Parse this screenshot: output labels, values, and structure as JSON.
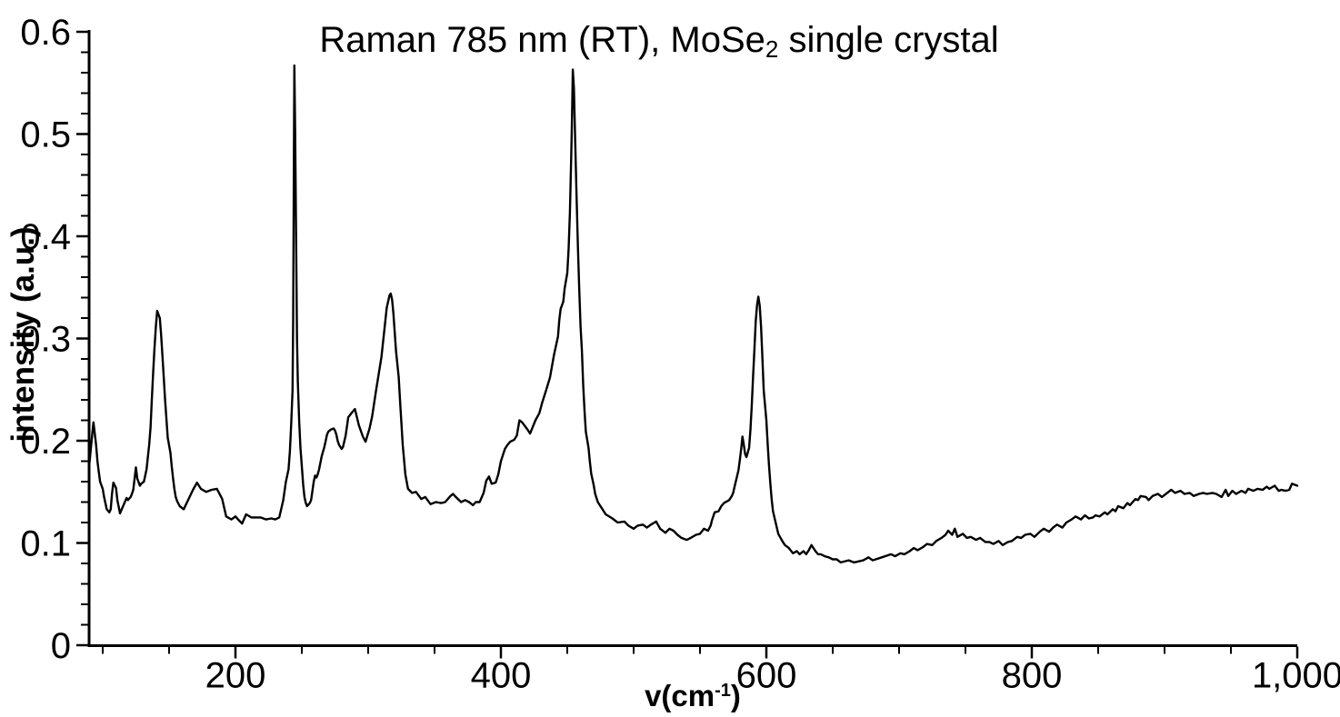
{
  "title": {
    "prefix": "Raman 785 nm (RT), MoSe",
    "subscript": "2",
    "suffix": " single crystal"
  },
  "x_axis": {
    "title_prefix": "v(cm",
    "title_superscript": "-1",
    "title_suffix": ")",
    "min": 89.7,
    "max": 1000,
    "major_ticks": [
      {
        "value": 200,
        "label": "200"
      },
      {
        "value": 400,
        "label": "400"
      },
      {
        "value": 600,
        "label": "600"
      },
      {
        "value": 800,
        "label": "800"
      },
      {
        "value": 1000,
        "label": "1,000"
      }
    ],
    "minor_tick_start": 100,
    "minor_tick_step": 50
  },
  "y_axis": {
    "title": "intensity (a.u.)",
    "min": 0,
    "max": 0.6,
    "major_ticks": [
      {
        "value": 0,
        "label": "0"
      },
      {
        "value": 0.1,
        "label": "0.1"
      },
      {
        "value": 0.2,
        "label": "0.2"
      },
      {
        "value": 0.3,
        "label": "0.3"
      },
      {
        "value": 0.4,
        "label": "0.4"
      },
      {
        "value": 0.5,
        "label": "0.5"
      },
      {
        "value": 0.6,
        "label": "0.6"
      }
    ],
    "minor_tick_step": 0.02
  },
  "chart_data": {
    "type": "line",
    "title": "Raman 785 nm (RT), MoSe2 single crystal",
    "xlabel": "v(cm-1)",
    "ylabel": "intensity (a.u.)",
    "xlim": [
      89.7,
      1000
    ],
    "ylim": [
      0,
      0.6
    ],
    "grid": false,
    "legend_position": "none",
    "line_color": "#000000",
    "background_color": "#ffffff",
    "peaks": [
      {
        "v": 93,
        "intensity": 0.218
      },
      {
        "v": 141,
        "intensity": 0.327
      },
      {
        "v": 244,
        "intensity": 0.567
      },
      {
        "v": 273,
        "intensity": 0.212
      },
      {
        "v": 290,
        "intensity": 0.231
      },
      {
        "v": 317,
        "intensity": 0.344
      },
      {
        "v": 414,
        "intensity": 0.22
      },
      {
        "v": 454,
        "intensity": 0.563
      },
      {
        "v": 582,
        "intensity": 0.204
      },
      {
        "v": 594,
        "intensity": 0.341
      }
    ],
    "points": [
      [
        89.5,
        0.172
      ],
      [
        90,
        0.178
      ],
      [
        92,
        0.205
      ],
      [
        93,
        0.218
      ],
      [
        95,
        0.196
      ],
      [
        96,
        0.18
      ],
      [
        97,
        0.17
      ],
      [
        98,
        0.16
      ],
      [
        100,
        0.153
      ],
      [
        101,
        0.145
      ],
      [
        103,
        0.133
      ],
      [
        105,
        0.13
      ],
      [
        106,
        0.133
      ],
      [
        107,
        0.148
      ],
      [
        108,
        0.159
      ],
      [
        110,
        0.154
      ],
      [
        111,
        0.142
      ],
      [
        113,
        0.129
      ],
      [
        115,
        0.135
      ],
      [
        117,
        0.141
      ],
      [
        118,
        0.144
      ],
      [
        119,
        0.142
      ],
      [
        121,
        0.145
      ],
      [
        122,
        0.148
      ],
      [
        123,
        0.152
      ],
      [
        125,
        0.174
      ],
      [
        126,
        0.163
      ],
      [
        128,
        0.156
      ],
      [
        129,
        0.158
      ],
      [
        131,
        0.16
      ],
      [
        133,
        0.172
      ],
      [
        135,
        0.196
      ],
      [
        136,
        0.213
      ],
      [
        137,
        0.24
      ],
      [
        138,
        0.267
      ],
      [
        139,
        0.29
      ],
      [
        140,
        0.311
      ],
      [
        141,
        0.327
      ],
      [
        143,
        0.32
      ],
      [
        144,
        0.304
      ],
      [
        145,
        0.283
      ],
      [
        146,
        0.261
      ],
      [
        147,
        0.24
      ],
      [
        148,
        0.221
      ],
      [
        149,
        0.203
      ],
      [
        151,
        0.188
      ],
      [
        152,
        0.175
      ],
      [
        153,
        0.163
      ],
      [
        154,
        0.153
      ],
      [
        155,
        0.145
      ],
      [
        156,
        0.141
      ],
      [
        158,
        0.136
      ],
      [
        161,
        0.133
      ],
      [
        164,
        0.141
      ],
      [
        168,
        0.152
      ],
      [
        171,
        0.159
      ],
      [
        174,
        0.153
      ],
      [
        178,
        0.15
      ],
      [
        182,
        0.152
      ],
      [
        186,
        0.153
      ],
      [
        190,
        0.143
      ],
      [
        193,
        0.126
      ],
      [
        197,
        0.123
      ],
      [
        200,
        0.126
      ],
      [
        202,
        0.123
      ],
      [
        205,
        0.119
      ],
      [
        208,
        0.128
      ],
      [
        212,
        0.125
      ],
      [
        215,
        0.125
      ],
      [
        219,
        0.125
      ],
      [
        223,
        0.123
      ],
      [
        227,
        0.124
      ],
      [
        230,
        0.123
      ],
      [
        233,
        0.125
      ],
      [
        236,
        0.142
      ],
      [
        238,
        0.16
      ],
      [
        240,
        0.172
      ],
      [
        241,
        0.19
      ],
      [
        242,
        0.216
      ],
      [
        243,
        0.249
      ],
      [
        243.5,
        0.32
      ],
      [
        244,
        0.46
      ],
      [
        244.4,
        0.567
      ],
      [
        245,
        0.5
      ],
      [
        245.7,
        0.4
      ],
      [
        246.4,
        0.3
      ],
      [
        247,
        0.258
      ],
      [
        247.5,
        0.24
      ],
      [
        248,
        0.219
      ],
      [
        249,
        0.193
      ],
      [
        250,
        0.175
      ],
      [
        251,
        0.157
      ],
      [
        252,
        0.145
      ],
      [
        253,
        0.139
      ],
      [
        254,
        0.136
      ],
      [
        256,
        0.139
      ],
      [
        257,
        0.142
      ],
      [
        258,
        0.151
      ],
      [
        259,
        0.16
      ],
      [
        260,
        0.166
      ],
      [
        261,
        0.164
      ],
      [
        262,
        0.167
      ],
      [
        263,
        0.172
      ],
      [
        265,
        0.185
      ],
      [
        267,
        0.194
      ],
      [
        268,
        0.2
      ],
      [
        269,
        0.206
      ],
      [
        270,
        0.209
      ],
      [
        272,
        0.211
      ],
      [
        274,
        0.212
      ],
      [
        275,
        0.21
      ],
      [
        276,
        0.206
      ],
      [
        277,
        0.2
      ],
      [
        278,
        0.196
      ],
      [
        280,
        0.192
      ],
      [
        281,
        0.194
      ],
      [
        283,
        0.205
      ],
      [
        285,
        0.223
      ],
      [
        288,
        0.228
      ],
      [
        290,
        0.231
      ],
      [
        293,
        0.215
      ],
      [
        296,
        0.204
      ],
      [
        298,
        0.199
      ],
      [
        301,
        0.212
      ],
      [
        303,
        0.224
      ],
      [
        306,
        0.25
      ],
      [
        308,
        0.266
      ],
      [
        310,
        0.282
      ],
      [
        312,
        0.306
      ],
      [
        314,
        0.33
      ],
      [
        316,
        0.342
      ],
      [
        317,
        0.344
      ],
      [
        318,
        0.338
      ],
      [
        319,
        0.325
      ],
      [
        321,
        0.287
      ],
      [
        323,
        0.262
      ],
      [
        324,
        0.24
      ],
      [
        326,
        0.196
      ],
      [
        328,
        0.167
      ],
      [
        330,
        0.153
      ],
      [
        333,
        0.149
      ],
      [
        336,
        0.15
      ],
      [
        340,
        0.143
      ],
      [
        343,
        0.145
      ],
      [
        347,
        0.138
      ],
      [
        351,
        0.14
      ],
      [
        355,
        0.139
      ],
      [
        358,
        0.14
      ],
      [
        362,
        0.146
      ],
      [
        364,
        0.148
      ],
      [
        366,
        0.145
      ],
      [
        370,
        0.14
      ],
      [
        373,
        0.142
      ],
      [
        376,
        0.14
      ],
      [
        379,
        0.137
      ],
      [
        381,
        0.14
      ],
      [
        384,
        0.14
      ],
      [
        387,
        0.149
      ],
      [
        389,
        0.161
      ],
      [
        391,
        0.165
      ],
      [
        393,
        0.158
      ],
      [
        396,
        0.159
      ],
      [
        398,
        0.167
      ],
      [
        400,
        0.18
      ],
      [
        403,
        0.192
      ],
      [
        405,
        0.196
      ],
      [
        407,
        0.199
      ],
      [
        410,
        0.201
      ],
      [
        412,
        0.205
      ],
      [
        414,
        0.22
      ],
      [
        416,
        0.218
      ],
      [
        420,
        0.211
      ],
      [
        422,
        0.207
      ],
      [
        426,
        0.22
      ],
      [
        429,
        0.227
      ],
      [
        431,
        0.237
      ],
      [
        434,
        0.249
      ],
      [
        437,
        0.262
      ],
      [
        440,
        0.284
      ],
      [
        443,
        0.302
      ],
      [
        444,
        0.318
      ],
      [
        445,
        0.329
      ],
      [
        447,
        0.336
      ],
      [
        448,
        0.349
      ],
      [
        450,
        0.364
      ],
      [
        451,
        0.388
      ],
      [
        452,
        0.423
      ],
      [
        453,
        0.48
      ],
      [
        453.6,
        0.52
      ],
      [
        454.2,
        0.563
      ],
      [
        455,
        0.545
      ],
      [
        456,
        0.49
      ],
      [
        457,
        0.44
      ],
      [
        458,
        0.39
      ],
      [
        459,
        0.35
      ],
      [
        460,
        0.312
      ],
      [
        461,
        0.288
      ],
      [
        462,
        0.255
      ],
      [
        463,
        0.229
      ],
      [
        464,
        0.209
      ],
      [
        466,
        0.193
      ],
      [
        467,
        0.18
      ],
      [
        468,
        0.168
      ],
      [
        470,
        0.156
      ],
      [
        471,
        0.148
      ],
      [
        473,
        0.14
      ],
      [
        476,
        0.134
      ],
      [
        479,
        0.128
      ],
      [
        484,
        0.124
      ],
      [
        488,
        0.12
      ],
      [
        493,
        0.121
      ],
      [
        496,
        0.117
      ],
      [
        500,
        0.114
      ],
      [
        503,
        0.117
      ],
      [
        507,
        0.118
      ],
      [
        510,
        0.115
      ],
      [
        513,
        0.118
      ],
      [
        517,
        0.121
      ],
      [
        520,
        0.114
      ],
      [
        524,
        0.11
      ],
      [
        527,
        0.114
      ],
      [
        530,
        0.112
      ],
      [
        533,
        0.108
      ],
      [
        536,
        0.105
      ],
      [
        540,
        0.103
      ],
      [
        543,
        0.105
      ],
      [
        547,
        0.108
      ],
      [
        550,
        0.109
      ],
      [
        553,
        0.114
      ],
      [
        556,
        0.112
      ],
      [
        558,
        0.117
      ],
      [
        559,
        0.122
      ],
      [
        561,
        0.13
      ],
      [
        564,
        0.131
      ],
      [
        566,
        0.136
      ],
      [
        568,
        0.139
      ],
      [
        572,
        0.142
      ],
      [
        574,
        0.146
      ],
      [
        575,
        0.149
      ],
      [
        576,
        0.155
      ],
      [
        579,
        0.171
      ],
      [
        580,
        0.181
      ],
      [
        581,
        0.192
      ],
      [
        582,
        0.204
      ],
      [
        583,
        0.196
      ],
      [
        584,
        0.187
      ],
      [
        585,
        0.184
      ],
      [
        587,
        0.193
      ],
      [
        588,
        0.211
      ],
      [
        589,
        0.234
      ],
      [
        590,
        0.263
      ],
      [
        591,
        0.29
      ],
      [
        592,
        0.317
      ],
      [
        593,
        0.333
      ],
      [
        594,
        0.341
      ],
      [
        595,
        0.332
      ],
      [
        596,
        0.311
      ],
      [
        597,
        0.282
      ],
      [
        598,
        0.249
      ],
      [
        600,
        0.22
      ],
      [
        601,
        0.196
      ],
      [
        602,
        0.176
      ],
      [
        603,
        0.158
      ],
      [
        604,
        0.143
      ],
      [
        605,
        0.131
      ],
      [
        607,
        0.12
      ],
      [
        609,
        0.109
      ],
      [
        612,
        0.102
      ],
      [
        614,
        0.098
      ],
      [
        617,
        0.095
      ],
      [
        620,
        0.09
      ],
      [
        623,
        0.092
      ],
      [
        625,
        0.089
      ],
      [
        628,
        0.092
      ],
      [
        630,
        0.089
      ],
      [
        632,
        0.093
      ],
      [
        634,
        0.098
      ],
      [
        637,
        0.092
      ],
      [
        639,
        0.089
      ],
      [
        641,
        0.089
      ],
      [
        644,
        0.087
      ],
      [
        647,
        0.086
      ],
      [
        650,
        0.084
      ],
      [
        653,
        0.084
      ],
      [
        656,
        0.081
      ],
      [
        662,
        0.083
      ],
      [
        666,
        0.081
      ],
      [
        673,
        0.083
      ],
      [
        677,
        0.086
      ],
      [
        680,
        0.083
      ],
      [
        687,
        0.086
      ],
      [
        694,
        0.089
      ],
      [
        697,
        0.087
      ],
      [
        701,
        0.09
      ],
      [
        704,
        0.089
      ],
      [
        708,
        0.092
      ],
      [
        711,
        0.095
      ],
      [
        714,
        0.093
      ],
      [
        718,
        0.096
      ],
      [
        721,
        0.099
      ],
      [
        725,
        0.098
      ],
      [
        728,
        0.102
      ],
      [
        732,
        0.105
      ],
      [
        735,
        0.108
      ],
      [
        737,
        0.112
      ],
      [
        740,
        0.108
      ],
      [
        742,
        0.114
      ],
      [
        744,
        0.106
      ],
      [
        748,
        0.109
      ],
      [
        751,
        0.105
      ],
      [
        754,
        0.106
      ],
      [
        758,
        0.103
      ],
      [
        761,
        0.105
      ],
      [
        765,
        0.101
      ],
      [
        768,
        0.101
      ],
      [
        771,
        0.099
      ],
      [
        775,
        0.102
      ],
      [
        778,
        0.098
      ],
      [
        782,
        0.101
      ],
      [
        785,
        0.102
      ],
      [
        789,
        0.106
      ],
      [
        792,
        0.105
      ],
      [
        795,
        0.108
      ],
      [
        799,
        0.109
      ],
      [
        802,
        0.106
      ],
      [
        806,
        0.111
      ],
      [
        809,
        0.114
      ],
      [
        813,
        0.111
      ],
      [
        816,
        0.115
      ],
      [
        819,
        0.118
      ],
      [
        823,
        0.115
      ],
      [
        826,
        0.12
      ],
      [
        830,
        0.123
      ],
      [
        833,
        0.126
      ],
      [
        837,
        0.123
      ],
      [
        840,
        0.127
      ],
      [
        843,
        0.124
      ],
      [
        846,
        0.125
      ],
      [
        848,
        0.127
      ],
      [
        851,
        0.126
      ],
      [
        855,
        0.13
      ],
      [
        857,
        0.128
      ],
      [
        861,
        0.133
      ],
      [
        863,
        0.131
      ],
      [
        865,
        0.136
      ],
      [
        869,
        0.134
      ],
      [
        872,
        0.139
      ],
      [
        874,
        0.137
      ],
      [
        878,
        0.143
      ],
      [
        880,
        0.142
      ],
      [
        882,
        0.146
      ],
      [
        886,
        0.145
      ],
      [
        888,
        0.142
      ],
      [
        891,
        0.146
      ],
      [
        895,
        0.148
      ],
      [
        898,
        0.145
      ],
      [
        902,
        0.149
      ],
      [
        905,
        0.152
      ],
      [
        908,
        0.149
      ],
      [
        912,
        0.151
      ],
      [
        915,
        0.148
      ],
      [
        919,
        0.149
      ],
      [
        922,
        0.146
      ],
      [
        926,
        0.148
      ],
      [
        929,
        0.149
      ],
      [
        932,
        0.148
      ],
      [
        936,
        0.149
      ],
      [
        939,
        0.148
      ],
      [
        943,
        0.145
      ],
      [
        946,
        0.152
      ],
      [
        948,
        0.146
      ],
      [
        951,
        0.151
      ],
      [
        954,
        0.148
      ],
      [
        958,
        0.151
      ],
      [
        961,
        0.149
      ],
      [
        963,
        0.153
      ],
      [
        967,
        0.151
      ],
      [
        970,
        0.153
      ],
      [
        974,
        0.152
      ],
      [
        977,
        0.155
      ],
      [
        979,
        0.153
      ],
      [
        983,
        0.156
      ],
      [
        986,
        0.151
      ],
      [
        988,
        0.152
      ],
      [
        991,
        0.151
      ],
      [
        994,
        0.152
      ],
      [
        996,
        0.158
      ],
      [
        1000,
        0.156
      ]
    ]
  }
}
